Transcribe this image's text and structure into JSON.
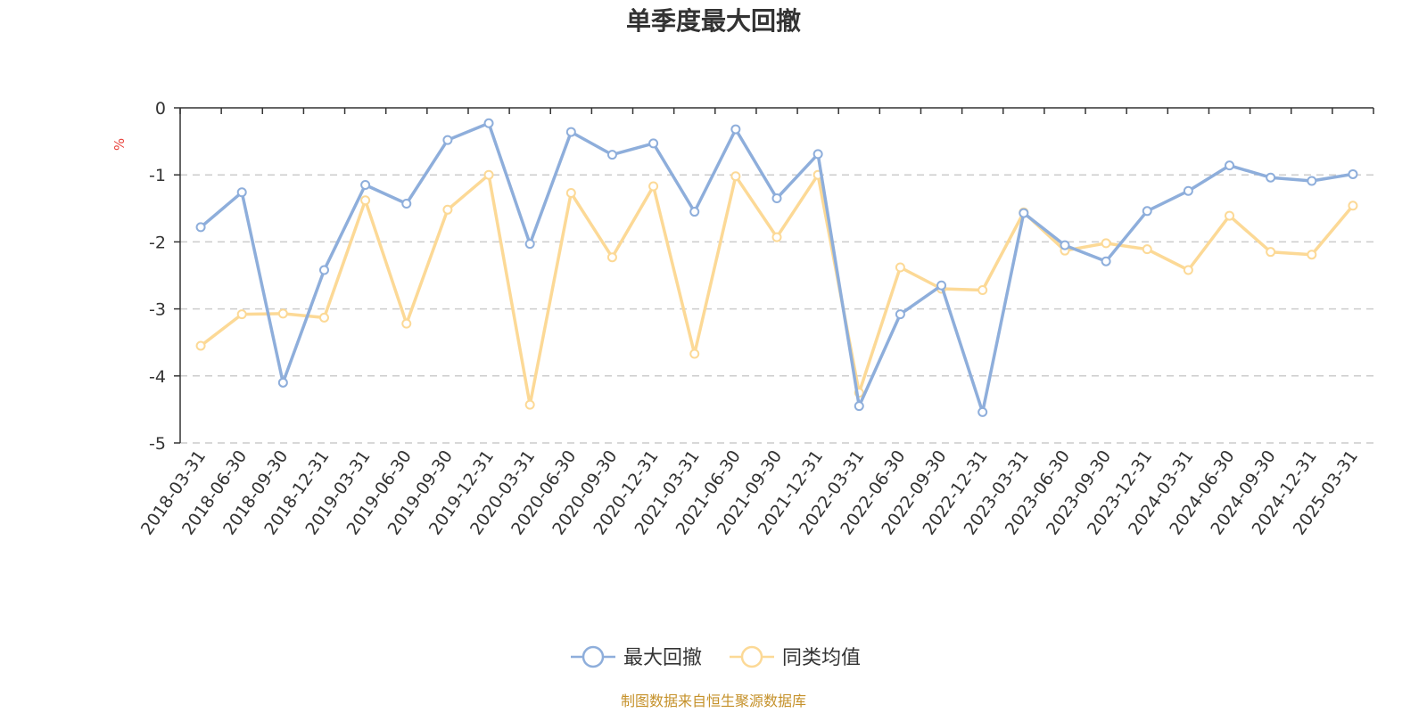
{
  "chart_data": {
    "type": "line",
    "title": "单季度最大回撤",
    "ylabel": "%",
    "ylim": [
      -5,
      0
    ],
    "yticks": [
      0,
      -1,
      -2,
      -3,
      -4,
      -5
    ],
    "ytick_labels": [
      "0",
      "-1",
      "-2",
      "-3",
      "-4",
      "-5"
    ],
    "grid": true,
    "legend_position": "bottom-center",
    "categories": [
      "2018-03-31",
      "2018-06-30",
      "2018-09-30",
      "2018-12-31",
      "2019-03-31",
      "2019-06-30",
      "2019-09-30",
      "2019-12-31",
      "2020-03-31",
      "2020-06-30",
      "2020-09-30",
      "2020-12-31",
      "2021-03-31",
      "2021-06-30",
      "2021-09-30",
      "2021-12-31",
      "2022-03-31",
      "2022-06-30",
      "2022-09-30",
      "2022-12-31",
      "2023-03-31",
      "2023-06-30",
      "2023-09-30",
      "2023-12-31",
      "2024-03-31",
      "2024-06-30",
      "2024-09-30",
      "2024-12-31",
      "2025-03-31"
    ],
    "series": [
      {
        "name": "最大回撤",
        "color": "#8eaedb",
        "values": [
          -1.78,
          -1.26,
          -4.1,
          -2.42,
          -1.15,
          -1.43,
          -0.48,
          -0.23,
          -2.03,
          -0.36,
          -0.7,
          -0.53,
          -1.55,
          -0.32,
          -1.35,
          -0.69,
          -4.45,
          -3.08,
          -2.65,
          -4.54,
          -1.57,
          -2.05,
          -2.29,
          -1.54,
          -1.24,
          -0.86,
          -1.04,
          -1.09,
          -0.99
        ]
      },
      {
        "name": "同类均值",
        "color": "#fcd996",
        "values": [
          -3.55,
          -3.08,
          -3.07,
          -3.13,
          -1.38,
          -3.22,
          -1.52,
          -1.0,
          -4.43,
          -1.27,
          -2.23,
          -1.17,
          -3.67,
          -1.02,
          -1.93,
          -1.0,
          -4.25,
          -2.38,
          -2.7,
          -2.72,
          -1.56,
          -2.13,
          -2.02,
          -2.11,
          -2.42,
          -1.61,
          -2.15,
          -2.19,
          -1.46
        ]
      }
    ]
  },
  "colors": {
    "axis": "#333333",
    "grid": "#cccccc",
    "unit": "#e8423c",
    "source": "#c5912a"
  },
  "footer": {
    "source": "制图数据来自恒生聚源数据库"
  }
}
